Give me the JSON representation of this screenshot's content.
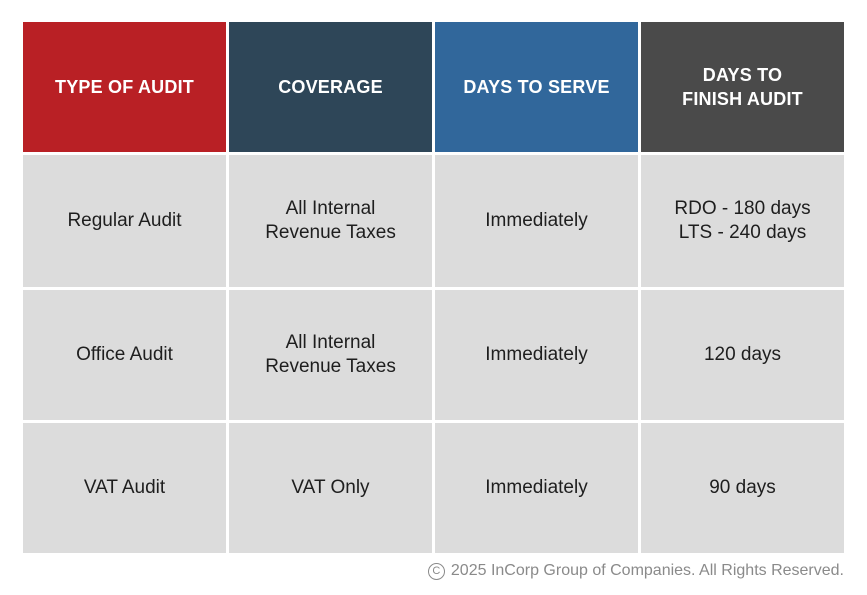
{
  "table": {
    "headers": [
      "TYPE OF AUDIT",
      "COVERAGE",
      "DAYS TO SERVE",
      "DAYS TO\nFINISH AUDIT"
    ],
    "header_colors": [
      "#b92025",
      "#2e4658",
      "#31679b",
      "#4a4a4a"
    ],
    "rows": [
      [
        "Regular Audit",
        "All Internal\nRevenue Taxes",
        "Immediately",
        "RDO - 180 days\nLTS - 240 days"
      ],
      [
        "Office Audit",
        "All Internal\nRevenue Taxes",
        "Immediately",
        "120 days"
      ],
      [
        "VAT Audit",
        "VAT Only",
        "Immediately",
        "90 days"
      ]
    ]
  },
  "footer": {
    "copyright_symbol": "C",
    "text": "2025 InCorp Group of Companies. All Rights Reserved."
  }
}
